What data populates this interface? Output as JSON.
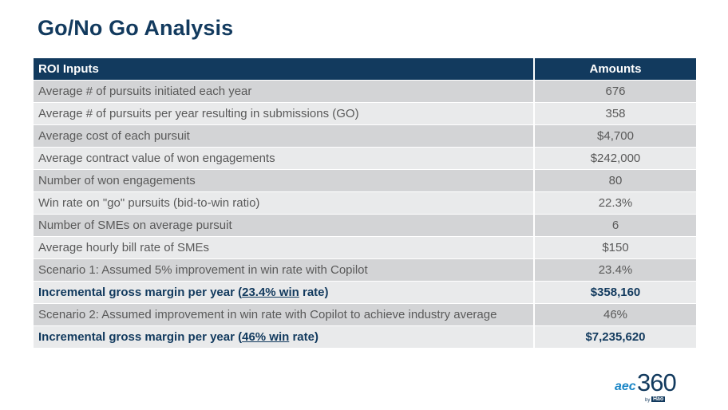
{
  "title": "Go/No Go Analysis",
  "table": {
    "headers": [
      "ROI Inputs",
      "Amounts"
    ],
    "rows": [
      {
        "label": "Average # of pursuits initiated each year",
        "value": "676"
      },
      {
        "label": "Average # of pursuits per year resulting in submissions (GO)",
        "value": "358"
      },
      {
        "label": "Average cost of each pursuit",
        "value": "$4,700"
      },
      {
        "label": "Average contract value of won engagements",
        "value": "$242,000"
      },
      {
        "label": "Number of won engagements",
        "value": "80"
      },
      {
        "label": "Win rate on \"go\" pursuits (bid-to-win ratio)",
        "value": "22.3%"
      },
      {
        "label": "Number of SMEs on average pursuit",
        "value": "6"
      },
      {
        "label": "Average hourly bill rate of SMEs",
        "value": "$150"
      },
      {
        "label": "Scenario 1: Assumed 5% improvement in win rate with Copilot",
        "value": "23.4%"
      },
      {
        "label_prefix": "Incremental gross margin per year (",
        "label_link": "23.4% win",
        "label_suffix": " rate)",
        "value": "$358,160"
      },
      {
        "label": "Scenario 2: Assumed improvement in win rate with Copilot to achieve industry average",
        "value": "46%"
      },
      {
        "label_prefix": "Incremental gross margin per year (",
        "label_link": "46% win",
        "label_suffix": " rate)",
        "value": "$7,235,620"
      }
    ]
  },
  "logo": {
    "prefix": "aec",
    "number": "360",
    "by": "by",
    "brand": "Hao"
  }
}
